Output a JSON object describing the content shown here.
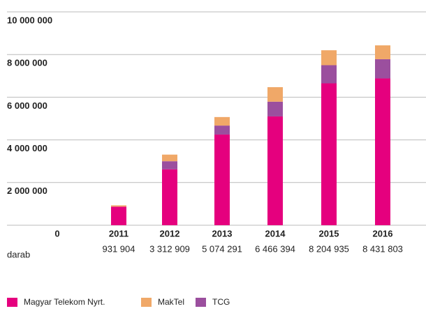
{
  "chart_data": {
    "type": "stacked_bar",
    "categories": [
      "2011",
      "2012",
      "2013",
      "2014",
      "2015",
      "2016"
    ],
    "total_labels": [
      "931 904",
      "3 312 909",
      "5 074 291",
      "6 466 394",
      "8 204 935",
      "8 431 803"
    ],
    "unit": "darab",
    "series": [
      {
        "name": "Magyar Telekom Nyrt.",
        "color": "#e5007e",
        "values": [
          870000,
          2620000,
          4250000,
          5100000,
          6650000,
          6880000
        ]
      },
      {
        "name": "TCG",
        "color": "#9b4f9e",
        "values": [
          0,
          380000,
          420000,
          690000,
          850000,
          900000
        ]
      },
      {
        "name": "MakTel",
        "color": "#f0a868",
        "values": [
          62000,
          310000,
          400000,
          680000,
          700000,
          650000
        ]
      }
    ],
    "legend_order": [
      0,
      2,
      1
    ],
    "ylim": [
      0,
      10000000
    ],
    "yticks": [
      0,
      {
        "value": 2000000,
        "label": "2 000 000"
      },
      {
        "value": 4000000,
        "label": "4 000 000"
      },
      {
        "value": 6000000,
        "label": "6 000 000"
      },
      {
        "value": 8000000,
        "label": "8 000 000"
      },
      {
        "value": 10000000,
        "label": "10 000 000"
      }
    ],
    "grid": true
  }
}
